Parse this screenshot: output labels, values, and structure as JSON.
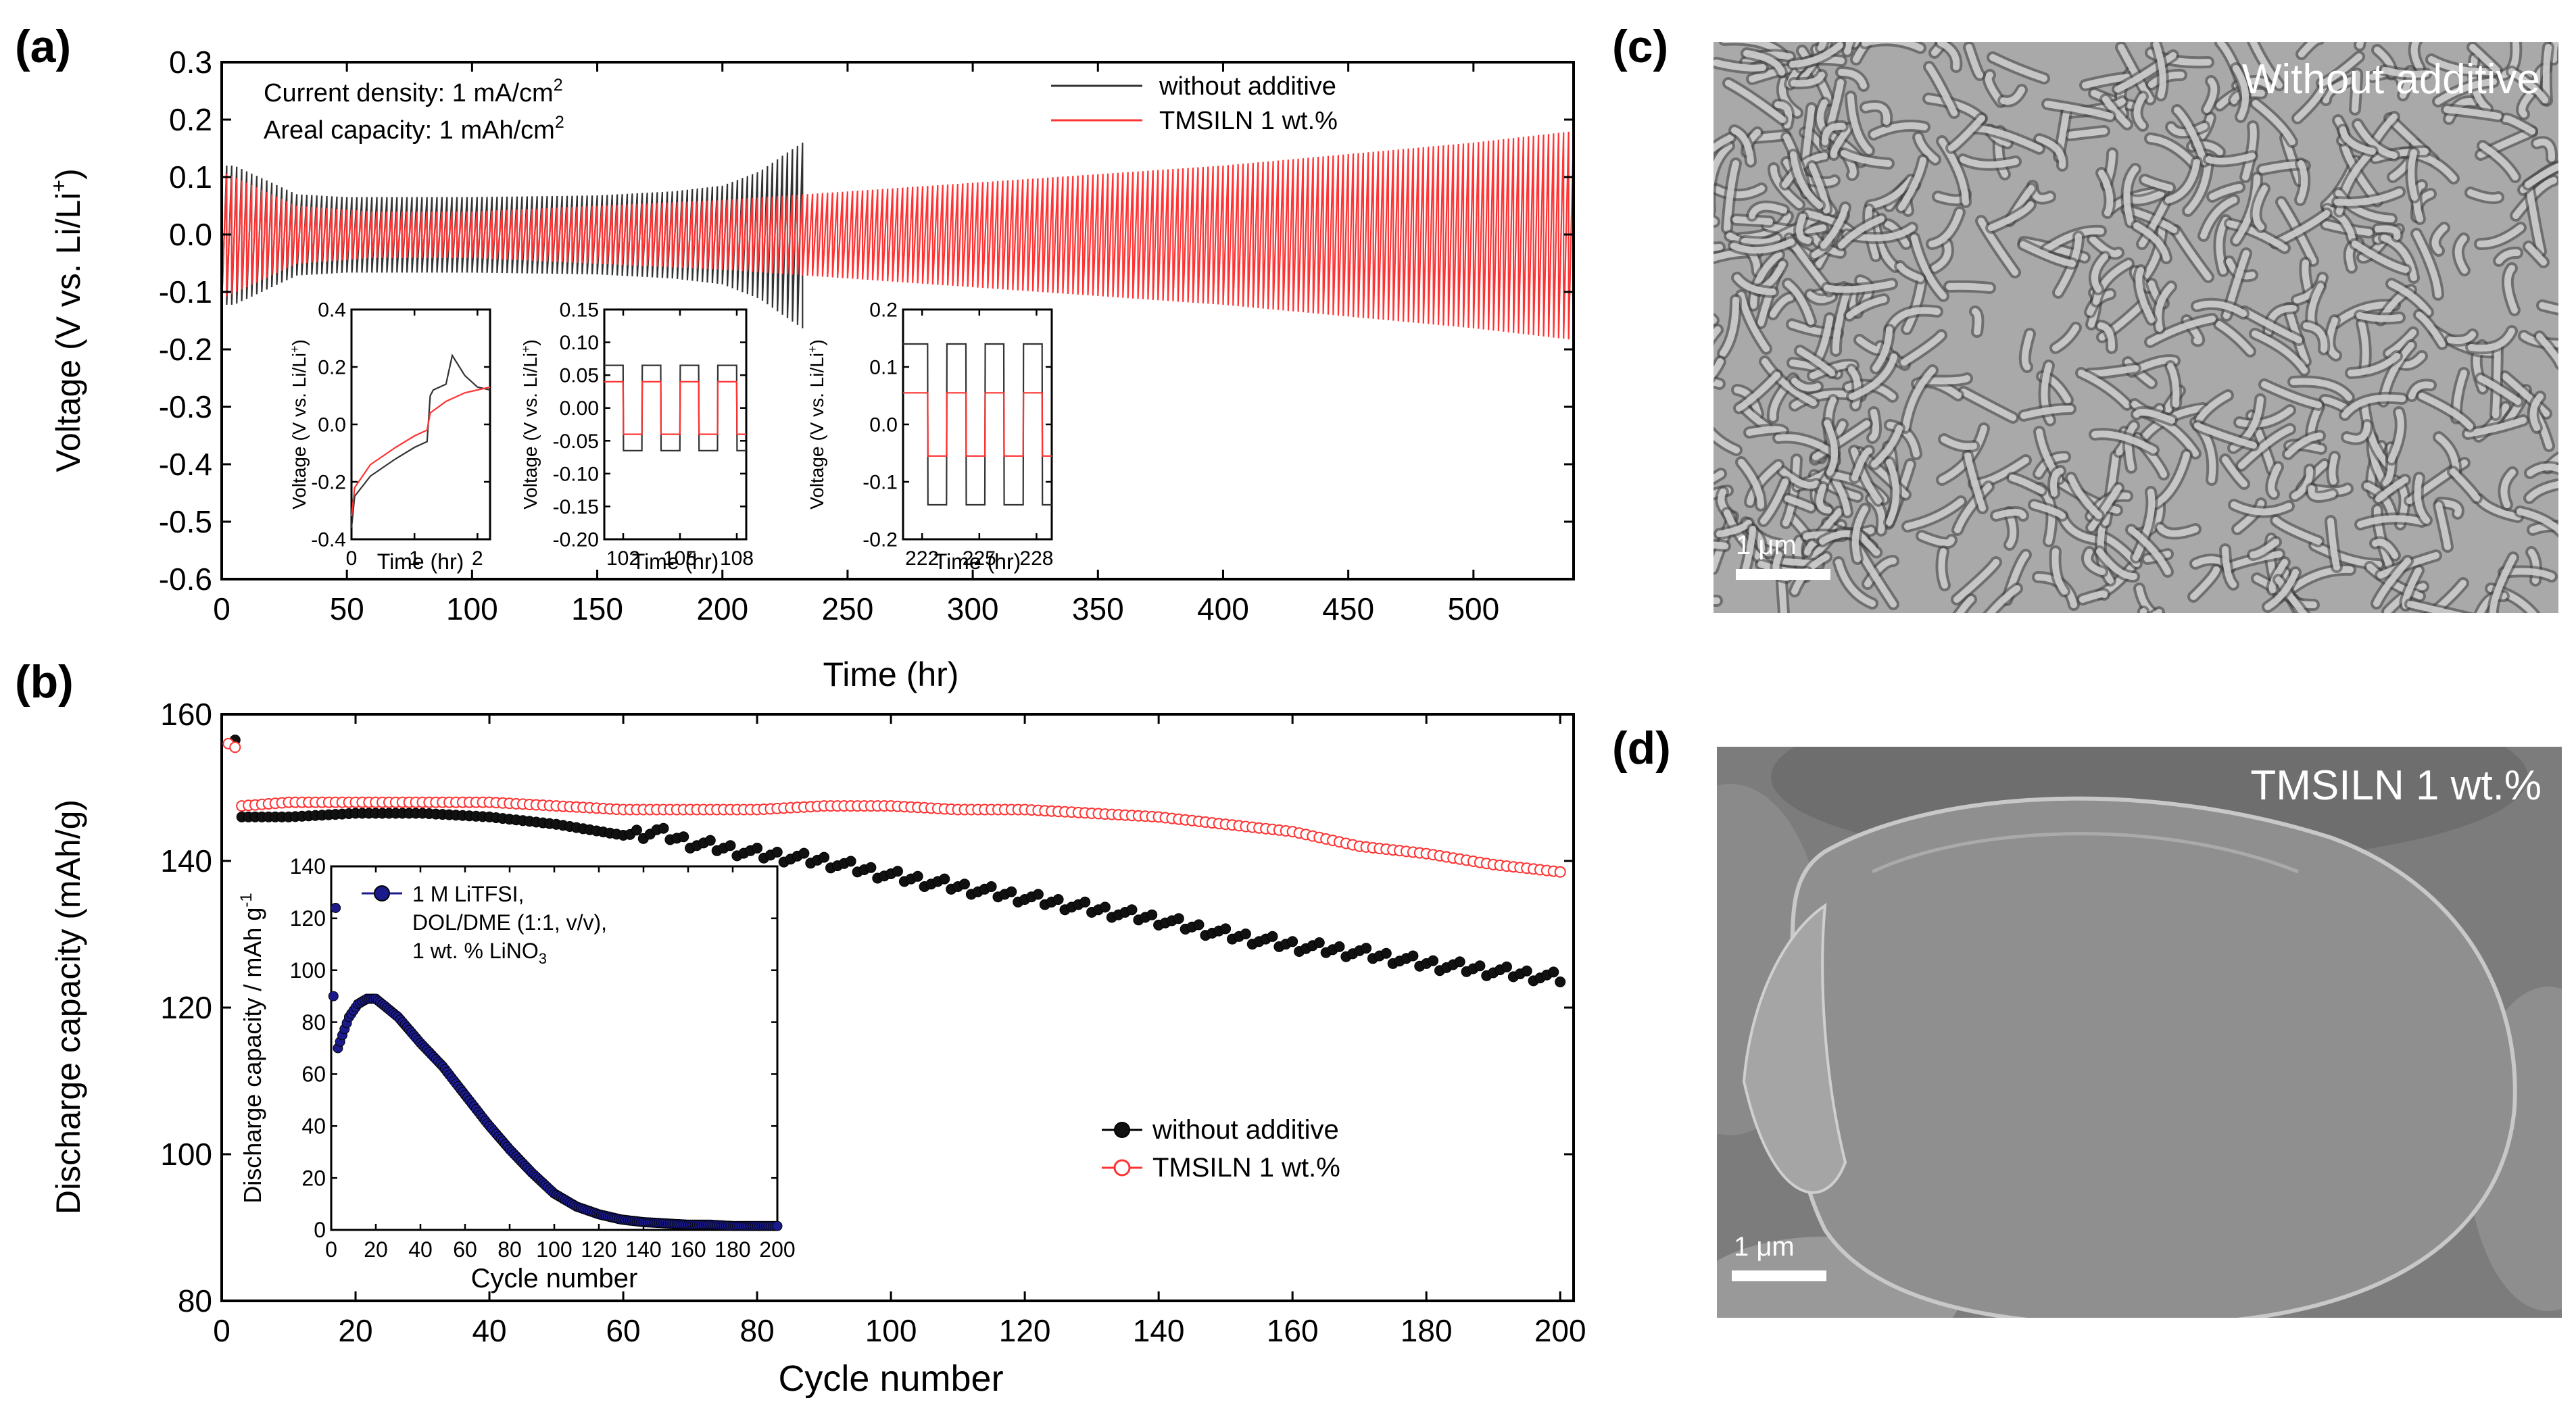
{
  "figure": {
    "panel_labels": {
      "a": "(a)",
      "b": "(b)",
      "c": "(c)",
      "d": "(d)"
    },
    "sem_c": {
      "label": "Without additive",
      "scale_text": "1 μm"
    },
    "sem_d": {
      "label": "TMSILN 1 wt.%",
      "scale_text": "1 μm"
    },
    "colors": {
      "without": "#333333",
      "tmsiln": "#ff3333",
      "inset_b": "#1a1a8c",
      "sem_bg": "#8c8c8c"
    }
  },
  "chart_data": [
    {
      "id": "a-main",
      "type": "line",
      "title": "",
      "xlabel": "Time (hr)",
      "ylabel": "Voltage (V vs. Li/Li",
      "ylabel_sup": "+",
      "ylabel_tail": ")",
      "xlim": [
        0,
        540
      ],
      "ylim": [
        -0.6,
        0.3
      ],
      "xticks": [
        0,
        50,
        100,
        150,
        200,
        250,
        300,
        350,
        400,
        450,
        500
      ],
      "yticks": [
        0.3,
        0.2,
        0.1,
        0.0,
        -0.1,
        -0.2,
        -0.3,
        -0.4,
        -0.5,
        -0.6
      ],
      "ytick_labels": [
        "0.3",
        "0.2",
        "0.1",
        "0.0",
        "-0.1",
        "-0.2",
        "-0.3",
        "-0.4",
        "-0.5",
        "-0.6"
      ],
      "annotation_1": "Current density: 1 mA/cm",
      "annotation_1_sup": "2",
      "annotation_2": "Areal capacity: 1 mAh/cm",
      "annotation_2_sup": "2",
      "legend": [
        "without additive",
        "TMSILN 1 wt.%"
      ],
      "series": [
        {
          "name": "without additive",
          "envelope_x": [
            0,
            5,
            15,
            30,
            50,
            100,
            150,
            180,
            200,
            215,
            225,
            232
          ],
          "envelope_y": [
            0.12,
            0.12,
            0.1,
            0.07,
            0.065,
            0.065,
            0.068,
            0.075,
            0.085,
            0.11,
            0.14,
            0.16
          ]
        },
        {
          "name": "TMSILN 1 wt.%",
          "envelope_x": [
            0,
            5,
            15,
            30,
            60,
            100,
            200,
            300,
            400,
            500,
            540
          ],
          "envelope_y": [
            0.11,
            0.1,
            0.08,
            0.05,
            0.04,
            0.04,
            0.06,
            0.09,
            0.12,
            0.16,
            0.18
          ]
        }
      ]
    },
    {
      "id": "a-inset-1",
      "type": "line",
      "xlabel": "Time (hr)",
      "ylabel": "Voltage (V vs. Li/Li",
      "ylabel_sup": "+",
      "ylabel_tail": ")",
      "xlim": [
        0,
        2.2
      ],
      "ylim": [
        -0.4,
        0.4
      ],
      "xticks": [
        0,
        1,
        2
      ],
      "yticks": [
        0.4,
        0.2,
        0.0,
        -0.2,
        -0.4
      ],
      "ytick_labels": [
        "0.4",
        "0.2",
        "0.0",
        "-0.2",
        "-0.4"
      ],
      "series": [
        {
          "name": "without additive",
          "x": [
            0,
            0.05,
            0.3,
            0.7,
            1.0,
            1.2,
            1.25,
            1.3,
            1.5,
            1.6,
            1.8,
            2.0,
            2.2
          ],
          "y": [
            -0.36,
            -0.25,
            -0.18,
            -0.12,
            -0.08,
            -0.06,
            0.1,
            0.12,
            0.14,
            0.24,
            0.17,
            0.13,
            0.12
          ]
        },
        {
          "name": "TMSILN 1 wt.%",
          "x": [
            0,
            0.05,
            0.3,
            0.7,
            1.0,
            1.2,
            1.25,
            1.5,
            1.8,
            2.0,
            2.2
          ],
          "y": [
            -0.32,
            -0.22,
            -0.14,
            -0.08,
            -0.04,
            -0.02,
            0.04,
            0.08,
            0.11,
            0.12,
            0.13
          ]
        }
      ]
    },
    {
      "id": "a-inset-2",
      "type": "line",
      "xlabel": "Time (hr)",
      "ylabel": "Voltage (V vs. Li/Li",
      "ylabel_sup": "+",
      "ylabel_tail": ")",
      "xlim": [
        101,
        108.5
      ],
      "ylim": [
        -0.2,
        0.15
      ],
      "xticks": [
        102,
        105,
        108
      ],
      "yticks": [
        0.15,
        0.1,
        0.05,
        0.0,
        -0.05,
        -0.1,
        -0.15,
        -0.2
      ],
      "ytick_labels": [
        "0.15",
        "0.10",
        "0.05",
        "0.00",
        "-0.05",
        "-0.10",
        "-0.15",
        "-0.20"
      ],
      "series": [
        {
          "name": "without additive",
          "amplitude": 0.065,
          "period": 2,
          "phase": 101
        },
        {
          "name": "TMSILN 1 wt.%",
          "amplitude": 0.04,
          "period": 2,
          "phase": 101
        }
      ]
    },
    {
      "id": "a-inset-3",
      "type": "line",
      "xlabel": "Time (hr)",
      "ylabel": "Voltage (V vs. Li/Li",
      "ylabel_sup": "+",
      "ylabel_tail": ")",
      "xlim": [
        221,
        228.8
      ],
      "ylim": [
        -0.2,
        0.2
      ],
      "xticks": [
        222,
        225,
        228
      ],
      "yticks": [
        0.2,
        0.1,
        0.0,
        -0.1,
        -0.2
      ],
      "ytick_labels": [
        "0.2",
        "0.1",
        "0.0",
        "-0.1",
        "-0.2"
      ],
      "series": [
        {
          "name": "without additive",
          "amplitude": 0.14,
          "period": 2,
          "phase": 221.3
        },
        {
          "name": "TMSILN 1 wt.%",
          "amplitude": 0.055,
          "period": 2,
          "phase": 221.3
        }
      ]
    },
    {
      "id": "b-main",
      "type": "scatter",
      "xlabel": "Cycle number",
      "ylabel": "Discharge capacity (mAh/g)",
      "xlim": [
        0,
        202
      ],
      "ylim": [
        80,
        160
      ],
      "xticks": [
        0,
        20,
        40,
        60,
        80,
        100,
        120,
        140,
        160,
        180,
        200
      ],
      "yticks": [
        80,
        100,
        120,
        140,
        160
      ],
      "legend": [
        "without additive",
        "TMSILN 1 wt.%"
      ],
      "series": [
        {
          "name": "without additive",
          "x": [
            1,
            2,
            3,
            10,
            20,
            30,
            40,
            50,
            60,
            65,
            70,
            80,
            90,
            100,
            110,
            120,
            130,
            140,
            150,
            160,
            170,
            180,
            190,
            200
          ],
          "y": [
            156,
            156.5,
            146,
            146,
            146.5,
            146.5,
            146,
            145,
            143.5,
            144,
            142.5,
            141,
            140,
            138,
            136.5,
            135,
            133.5,
            132,
            130,
            128.5,
            127.5,
            126,
            125,
            124
          ]
        },
        {
          "name": "TMSILN 1 wt.%",
          "x": [
            1,
            2,
            3,
            10,
            20,
            30,
            40,
            50,
            60,
            70,
            80,
            90,
            100,
            110,
            120,
            130,
            140,
            150,
            160,
            170,
            180,
            190,
            200
          ],
          "y": [
            156,
            155.5,
            147.5,
            148,
            148,
            148,
            148,
            147.5,
            147,
            147,
            147,
            147.5,
            147.5,
            147,
            147,
            146.5,
            146,
            145,
            144,
            142,
            141,
            139.5,
            138.5
          ]
        }
      ]
    },
    {
      "id": "b-inset",
      "type": "scatter",
      "xlabel": "Cycle number",
      "ylabel": "Discharge capacity / mAh g",
      "ylabel_sup": "-1",
      "xlim": [
        0,
        200
      ],
      "ylim": [
        0,
        140
      ],
      "xticks": [
        0,
        20,
        40,
        60,
        80,
        100,
        120,
        140,
        160,
        180,
        200
      ],
      "yticks": [
        0,
        20,
        40,
        60,
        80,
        100,
        120,
        140
      ],
      "legend_lines": [
        "1 M LiTFSI,",
        "DOL/DME (1:1, v/v),",
        "1 wt. % LiNO",
        "3"
      ],
      "series": [
        {
          "name": "1 M LiTFSI, DOL/DME (1:1, v/v), 1 wt. % LiNO3",
          "x": [
            1,
            2,
            3,
            5,
            8,
            12,
            16,
            20,
            30,
            40,
            50,
            60,
            70,
            80,
            90,
            100,
            110,
            120,
            130,
            140,
            150,
            160,
            170,
            180,
            190,
            200
          ],
          "y": [
            90,
            124,
            70,
            75,
            82,
            87,
            89,
            89,
            82,
            72,
            63,
            52,
            41,
            31,
            22,
            14,
            9,
            6,
            4,
            3,
            2.5,
            2,
            2,
            1.5,
            1.5,
            1.5
          ]
        }
      ]
    }
  ]
}
